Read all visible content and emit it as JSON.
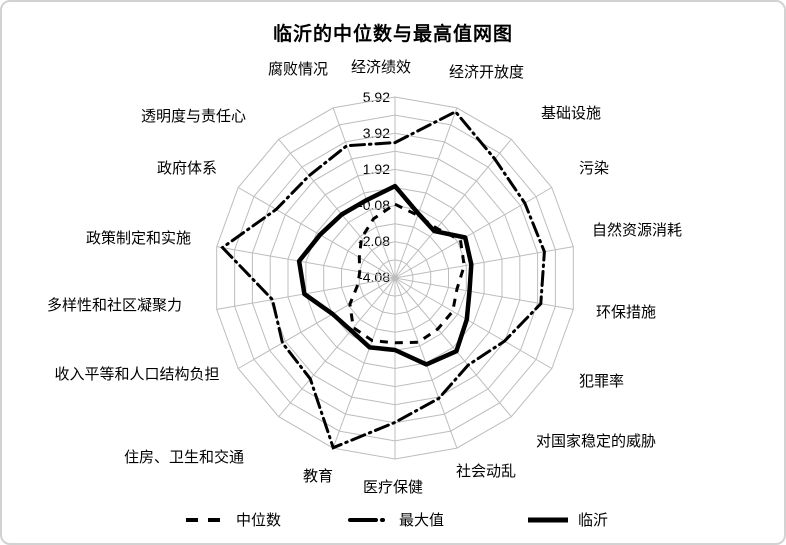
{
  "chart_data": {
    "type": "radar",
    "title": "临沂的中位数与最高值网图",
    "categories": [
      "经济绩效",
      "经济开放度",
      "基础设施",
      "污染",
      "自然资源消耗",
      "环保措施",
      "犯罪率",
      "对国家稳定的威胁",
      "社会动乱",
      "医疗保健",
      "教育",
      "住房、卫生和交通",
      "收入平等和人口结构负担",
      "多样性和社区凝聚力",
      "政策制定和实施",
      "政府体系",
      "透明度与责任心",
      "腐败情况"
    ],
    "series": [
      {
        "name": "中位数",
        "style": "dashed",
        "values": [
          0.0,
          -0.4,
          -0.5,
          0.1,
          -0.2,
          -0.6,
          -0.4,
          -0.4,
          -0.3,
          -0.5,
          -0.4,
          -0.5,
          -1.2,
          -2.0,
          -2.1,
          -1.8,
          -1.2,
          -0.6
        ]
      },
      {
        "name": "最大值",
        "style": "dash-dot",
        "values": [
          3.4,
          5.7,
          4.5,
          4.2,
          4.3,
          4.1,
          2.9,
          2.2,
          3.0,
          3.9,
          5.9,
          3.2,
          3.1,
          2.8,
          5.6,
          3.5,
          3.3,
          3.7
        ]
      },
      {
        "name": "临沂",
        "style": "solid-bold",
        "values": [
          1.0,
          -0.3,
          -0.7,
          0.4,
          0.2,
          0.1,
          0.5,
          1.2,
          1.0,
          -0.1,
          0.0,
          -0.3,
          -0.1,
          1.0,
          1.3,
          0.7,
          0.5,
          0.5
        ]
      }
    ],
    "radial_axis": {
      "min": -4.08,
      "max": 5.92,
      "ring_step": 1,
      "tick_labels": [
        "5.92",
        "3.92",
        "1.92",
        "-0.08",
        "-2.08",
        "-4.08"
      ]
    },
    "grid": true,
    "legend_position": "bottom",
    "colors": {
      "series": "#000000",
      "grid": "#bdbdbd",
      "background": "#ffffff",
      "border": "#d2d2d2"
    }
  }
}
